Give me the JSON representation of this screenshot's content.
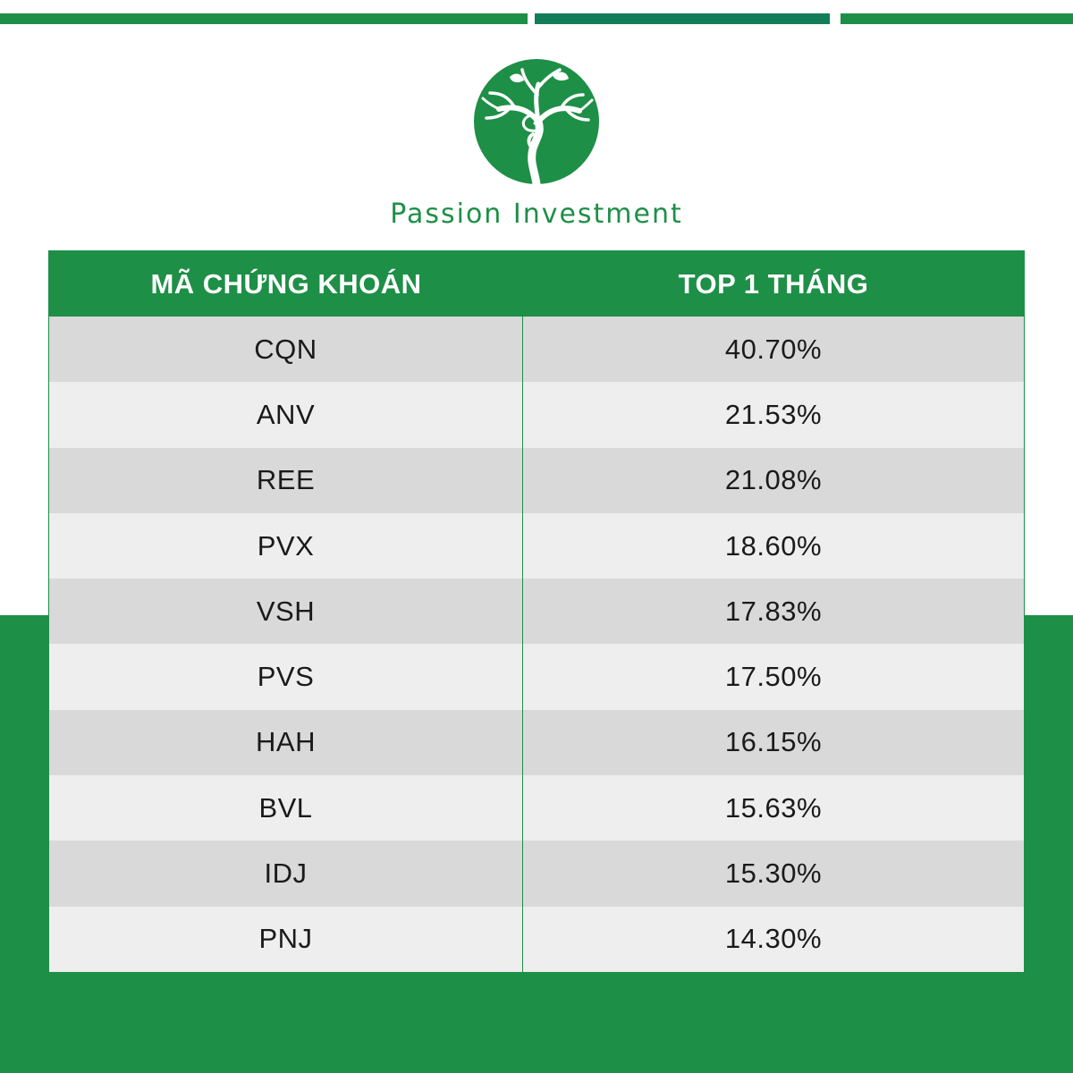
{
  "brand": {
    "name": "Passion Investment",
    "color": "#1e8f47"
  },
  "table": {
    "headers": [
      "MÃ CHỨNG KHOÁN",
      "TOP 1 THÁNG"
    ],
    "rows": [
      {
        "code": "CQN",
        "value": "40.70%"
      },
      {
        "code": "ANV",
        "value": "21.53%"
      },
      {
        "code": "REE",
        "value": "21.08%"
      },
      {
        "code": "PVX",
        "value": "18.60%"
      },
      {
        "code": "VSH",
        "value": "17.83%"
      },
      {
        "code": "PVS",
        "value": "17.50%"
      },
      {
        "code": "HAH",
        "value": "16.15%"
      },
      {
        "code": "BVL",
        "value": "15.63%"
      },
      {
        "code": "IDJ",
        "value": "15.30%"
      },
      {
        "code": "PNJ",
        "value": "14.30%"
      }
    ]
  }
}
